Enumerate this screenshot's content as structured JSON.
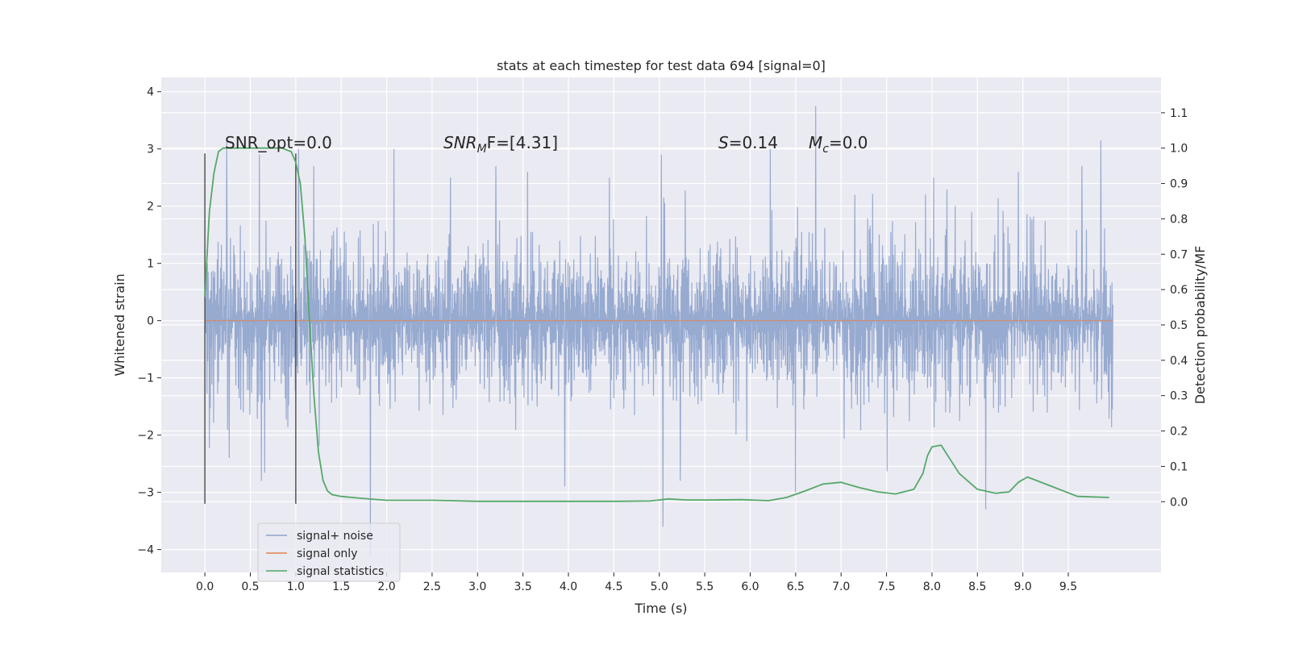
{
  "chart_data": {
    "type": "line",
    "title": "stats at each timestep for test data 694 [signal=0]",
    "xlabel": "Time (s)",
    "ylabel": "Whitened strain",
    "ylabel_right": "Detection probability/MF",
    "xlim": [
      -0.48,
      10.52
    ],
    "ylim": [
      -4.4,
      4.25
    ],
    "ylim_right": [
      -0.2,
      1.2
    ],
    "x_ticks": [
      0.0,
      0.5,
      1.0,
      1.5,
      2.0,
      2.5,
      3.0,
      3.5,
      4.0,
      4.5,
      5.0,
      5.5,
      6.0,
      6.5,
      7.0,
      7.5,
      8.0,
      8.5,
      9.0,
      9.5
    ],
    "y_ticks": [
      4,
      3,
      2,
      1,
      0,
      -1,
      -2,
      -3,
      -4
    ],
    "y_tick_labels": [
      "4",
      "3",
      "2",
      "1",
      "0",
      "−1",
      "−2",
      "−3",
      "−4"
    ],
    "y_right_ticks": [
      1.1,
      1.0,
      0.9,
      0.8,
      0.7,
      0.6,
      0.5,
      0.4,
      0.3,
      0.2,
      0.1,
      0.0
    ],
    "grid": true,
    "legend_position": "lower-left",
    "annotations": {
      "snr_opt": "SNR_opt=0.0",
      "snr_mf_sym": "SNR",
      "snr_mf_sub": "M",
      "snr_mf_rest": "F=[4.31]",
      "s_sym": "S",
      "s_rest": "=0.14",
      "mc_sym": "M",
      "mc_sub": "c",
      "mc_rest": "=0.0"
    },
    "vertical_markers": [
      0.0,
      1.0
    ],
    "vertical_marker_range": [
      -3.2,
      2.92
    ],
    "series": [
      {
        "name": "signal+ noise",
        "axis": "left",
        "color": "#8ea3cc",
        "x_range": [
          0.0,
          9.99
        ],
        "noise_envelope": 1.3,
        "spikes": [
          {
            "x": 0.24,
            "y": 3.2
          },
          {
            "x": 0.27,
            "y": -2.4
          },
          {
            "x": 0.6,
            "y": 2.9
          },
          {
            "x": 0.62,
            "y": -2.8
          },
          {
            "x": 1.03,
            "y": 3.0
          },
          {
            "x": 1.2,
            "y": 2.7
          },
          {
            "x": 1.82,
            "y": -4.1
          },
          {
            "x": 2.08,
            "y": 3.0
          },
          {
            "x": 2.7,
            "y": 2.5
          },
          {
            "x": 3.2,
            "y": 2.7
          },
          {
            "x": 3.55,
            "y": 2.6
          },
          {
            "x": 3.96,
            "y": -2.9
          },
          {
            "x": 4.45,
            "y": 2.5
          },
          {
            "x": 5.02,
            "y": 2.9
          },
          {
            "x": 5.04,
            "y": -3.6
          },
          {
            "x": 5.23,
            "y": -2.8
          },
          {
            "x": 6.22,
            "y": 3.0
          },
          {
            "x": 6.5,
            "y": -3.0
          },
          {
            "x": 6.72,
            "y": 3.75
          },
          {
            "x": 7.15,
            "y": 2.2
          },
          {
            "x": 8.02,
            "y": 2.5
          },
          {
            "x": 8.59,
            "y": -3.3
          },
          {
            "x": 8.95,
            "y": 2.6
          },
          {
            "x": 9.65,
            "y": 2.7
          },
          {
            "x": 9.86,
            "y": 3.15
          }
        ]
      },
      {
        "name": "signal only",
        "axis": "left",
        "color": "#dd8452",
        "x": [
          0.0,
          9.99
        ],
        "y": [
          0.0,
          0.0
        ]
      },
      {
        "name": "signal statistics",
        "axis": "right",
        "color": "#55a868",
        "x": [
          0.0,
          0.05,
          0.1,
          0.15,
          0.2,
          0.3,
          0.5,
          0.7,
          0.85,
          0.95,
          1.0,
          1.05,
          1.1,
          1.15,
          1.2,
          1.25,
          1.3,
          1.35,
          1.4,
          1.5,
          1.7,
          2.0,
          2.5,
          3.0,
          4.0,
          4.5,
          4.9,
          5.1,
          5.3,
          5.6,
          5.9,
          6.2,
          6.4,
          6.6,
          6.8,
          7.0,
          7.2,
          7.4,
          7.6,
          7.8,
          7.9,
          7.95,
          8.0,
          8.1,
          8.2,
          8.3,
          8.5,
          8.7,
          8.85,
          8.95,
          9.05,
          9.3,
          9.6,
          9.95
        ],
        "y": [
          0.58,
          0.82,
          0.93,
          0.99,
          1.0,
          1.0,
          1.0,
          1.0,
          1.0,
          0.99,
          0.96,
          0.9,
          0.75,
          0.52,
          0.3,
          0.14,
          0.06,
          0.03,
          0.02,
          0.015,
          0.01,
          0.004,
          0.004,
          0.001,
          0.001,
          0.001,
          0.002,
          0.008,
          0.005,
          0.005,
          0.006,
          0.003,
          0.012,
          0.03,
          0.05,
          0.055,
          0.04,
          0.028,
          0.022,
          0.035,
          0.08,
          0.13,
          0.155,
          0.16,
          0.12,
          0.08,
          0.035,
          0.024,
          0.028,
          0.055,
          0.07,
          0.045,
          0.015,
          0.012
        ]
      }
    ]
  }
}
